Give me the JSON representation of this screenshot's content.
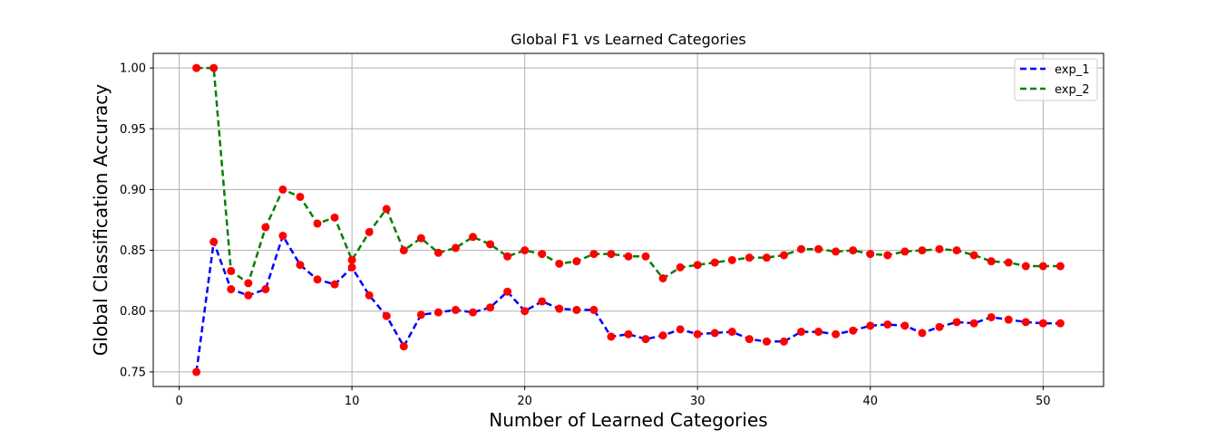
{
  "chart_data": {
    "type": "line",
    "title": "Global F1 vs Learned Categories",
    "xlabel": "Number of Learned Categories",
    "ylabel": "Global Classification Accuracy",
    "xlim": [
      -1.5,
      53.5
    ],
    "ylim": [
      0.738,
      1.012
    ],
    "xticks": [
      0,
      10,
      20,
      30,
      40,
      50
    ],
    "yticks": [
      0.75,
      0.8,
      0.85,
      0.9,
      0.95,
      1.0
    ],
    "ytick_labels": [
      "0.75",
      "0.80",
      "0.85",
      "0.90",
      "0.95",
      "1.00"
    ],
    "grid": true,
    "legend_position": "top-right",
    "marker_color": "#ff0000",
    "x": [
      1,
      2,
      3,
      4,
      5,
      6,
      7,
      8,
      9,
      10,
      11,
      12,
      13,
      14,
      15,
      16,
      17,
      18,
      19,
      20,
      21,
      22,
      23,
      24,
      25,
      26,
      27,
      28,
      29,
      30,
      31,
      32,
      33,
      34,
      35,
      36,
      37,
      38,
      39,
      40,
      41,
      42,
      43,
      44,
      45,
      46,
      47,
      48,
      49,
      50,
      51
    ],
    "series": [
      {
        "name": "exp_1",
        "color": "#0000ff",
        "values": [
          0.75,
          0.857,
          0.818,
          0.813,
          0.818,
          0.862,
          0.838,
          0.826,
          0.822,
          0.836,
          0.813,
          0.796,
          0.771,
          0.797,
          0.799,
          0.801,
          0.799,
          0.803,
          0.816,
          0.8,
          0.808,
          0.802,
          0.801,
          0.801,
          0.779,
          0.781,
          0.777,
          0.78,
          0.785,
          0.781,
          0.782,
          0.783,
          0.777,
          0.775,
          0.775,
          0.783,
          0.783,
          0.781,
          0.784,
          0.788,
          0.789,
          0.788,
          0.782,
          0.787,
          0.791,
          0.79,
          0.795,
          0.793,
          0.791,
          0.79,
          0.79
        ]
      },
      {
        "name": "exp_2",
        "color": "#008000",
        "values": [
          1.0,
          1.0,
          0.833,
          0.823,
          0.869,
          0.9,
          0.894,
          0.872,
          0.877,
          0.842,
          0.865,
          0.884,
          0.85,
          0.86,
          0.848,
          0.852,
          0.861,
          0.855,
          0.845,
          0.85,
          0.847,
          0.839,
          0.841,
          0.847,
          0.847,
          0.845,
          0.845,
          0.827,
          0.836,
          0.838,
          0.84,
          0.842,
          0.844,
          0.844,
          0.846,
          0.851,
          0.851,
          0.849,
          0.85,
          0.847,
          0.846,
          0.849,
          0.85,
          0.851,
          0.85,
          0.846,
          0.841,
          0.84,
          0.837,
          0.837,
          0.837
        ]
      }
    ]
  }
}
